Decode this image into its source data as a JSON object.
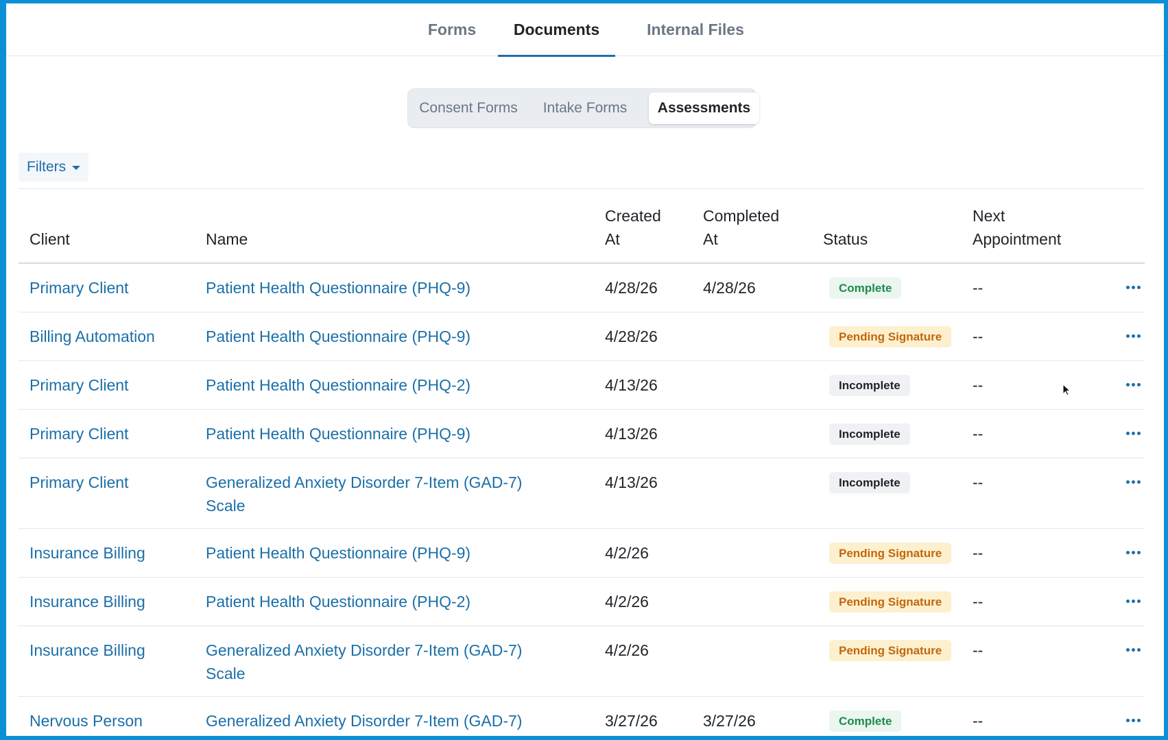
{
  "top_tabs": [
    {
      "label": "Forms",
      "active": false
    },
    {
      "label": "Documents",
      "active": true
    },
    {
      "label": "Internal Files",
      "active": false
    }
  ],
  "segments": [
    {
      "label": "Consent Forms",
      "active": false
    },
    {
      "label": "Intake Forms",
      "active": false
    },
    {
      "label": "Assessments",
      "active": true
    }
  ],
  "filters_label": "Filters",
  "columns": {
    "client": "Client",
    "name": "Name",
    "created_line1": "Created",
    "created_line2": "At",
    "completed_line1": "Completed",
    "completed_line2": "At",
    "status": "Status",
    "next_line1": "Next",
    "next_line2": "Appointment"
  },
  "rows": [
    {
      "client": "Primary Client",
      "name1": "Patient Health Questionnaire (PHQ-9)",
      "name2": "",
      "created": "4/28/26",
      "completed": "4/28/26",
      "status": "Complete",
      "status_type": "complete",
      "next": "--"
    },
    {
      "client": "Billing Automation",
      "name1": "Patient Health Questionnaire (PHQ-9)",
      "name2": "",
      "created": "4/28/26",
      "completed": "",
      "status": "Pending Signature",
      "status_type": "pending",
      "next": "--"
    },
    {
      "client": "Primary Client",
      "name1": "Patient Health Questionnaire (PHQ-2)",
      "name2": "",
      "created": "4/13/26",
      "completed": "",
      "status": "Incomplete",
      "status_type": "incomplete",
      "next": "--"
    },
    {
      "client": "Primary Client",
      "name1": "Patient Health Questionnaire (PHQ-9)",
      "name2": "",
      "created": "4/13/26",
      "completed": "",
      "status": "Incomplete",
      "status_type": "incomplete",
      "next": "--"
    },
    {
      "client": "Primary Client",
      "name1": "Generalized Anxiety Disorder 7-Item (GAD-7)",
      "name2": "Scale",
      "created": "4/13/26",
      "completed": "",
      "status": "Incomplete",
      "status_type": "incomplete",
      "next": "--"
    },
    {
      "client": "Insurance Billing",
      "name1": "Patient Health Questionnaire (PHQ-9)",
      "name2": "",
      "created": "4/2/26",
      "completed": "",
      "status": "Pending Signature",
      "status_type": "pending",
      "next": "--"
    },
    {
      "client": "Insurance Billing",
      "name1": "Patient Health Questionnaire (PHQ-2)",
      "name2": "",
      "created": "4/2/26",
      "completed": "",
      "status": "Pending Signature",
      "status_type": "pending",
      "next": "--"
    },
    {
      "client": "Insurance Billing",
      "name1": "Generalized Anxiety Disorder 7-Item (GAD-7)",
      "name2": "Scale",
      "created": "4/2/26",
      "completed": "",
      "status": "Pending Signature",
      "status_type": "pending",
      "next": "--"
    },
    {
      "client": "Nervous Person",
      "name1": "Generalized Anxiety Disorder 7-Item (GAD-7)",
      "name2": "",
      "created": "3/27/26",
      "completed": "3/27/26",
      "status": "Complete",
      "status_type": "complete",
      "next": "--"
    }
  ],
  "row_actions_icon": "more-horizontal-icon",
  "cursor_icon": "mouse-pointer-icon"
}
